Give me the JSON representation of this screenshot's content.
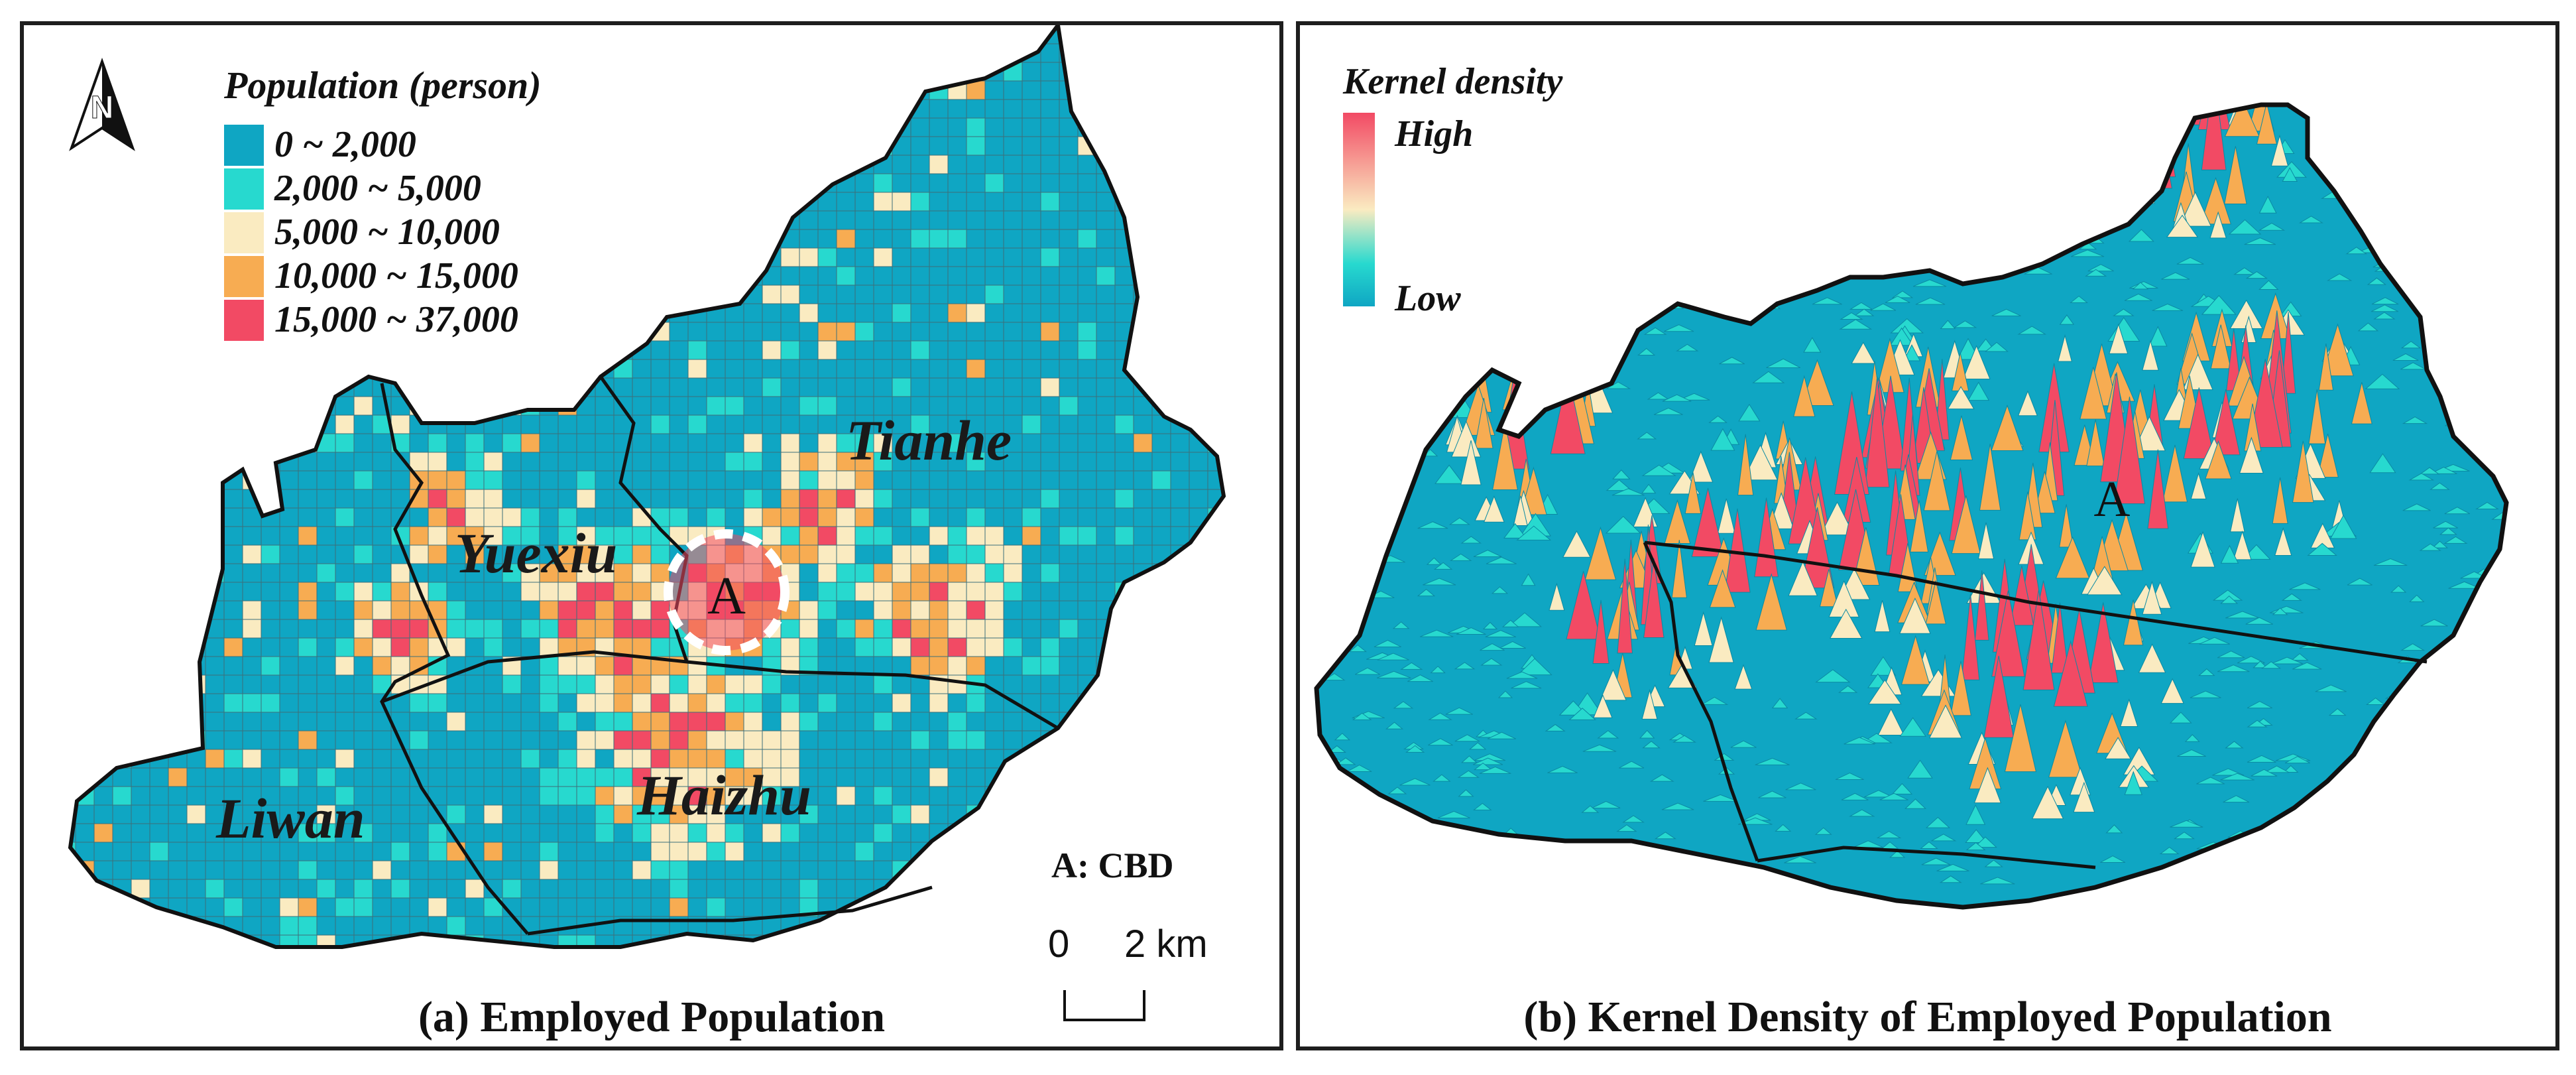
{
  "panel_a": {
    "caption": "(a) Employed Population",
    "legend_title": "Population (person)",
    "legend": [
      {
        "label": "0 ~ 2,000",
        "color": "#0fa6c3"
      },
      {
        "label": "2,000 ~ 5,000",
        "color": "#27d9cf"
      },
      {
        "label": "5,000 ~ 10,000",
        "color": "#faebc1"
      },
      {
        "label": "10,000 ~ 15,000",
        "color": "#f7ac52"
      },
      {
        "label": "15,000 ~ 37,000",
        "color": "#f24a64"
      }
    ],
    "districts": {
      "tianhe": "Tianhe",
      "yuexiu": "Yuexiu",
      "liwan": "Liwan",
      "haizhu": "Haizhu"
    },
    "cbd_marker": "A",
    "cbd_note": "A: CBD",
    "scale_start": "0",
    "scale_end": "2 km",
    "north_letter": "N"
  },
  "panel_b": {
    "caption": "(b) Kernel Density of Employed Population",
    "legend_title": "Kernel density",
    "legend_high": "High",
    "legend_low": "Low",
    "cbd_marker": "A",
    "colors": {
      "low": "#0fa6c3",
      "mid": "#faebc1",
      "high": "#f24a64"
    }
  }
}
